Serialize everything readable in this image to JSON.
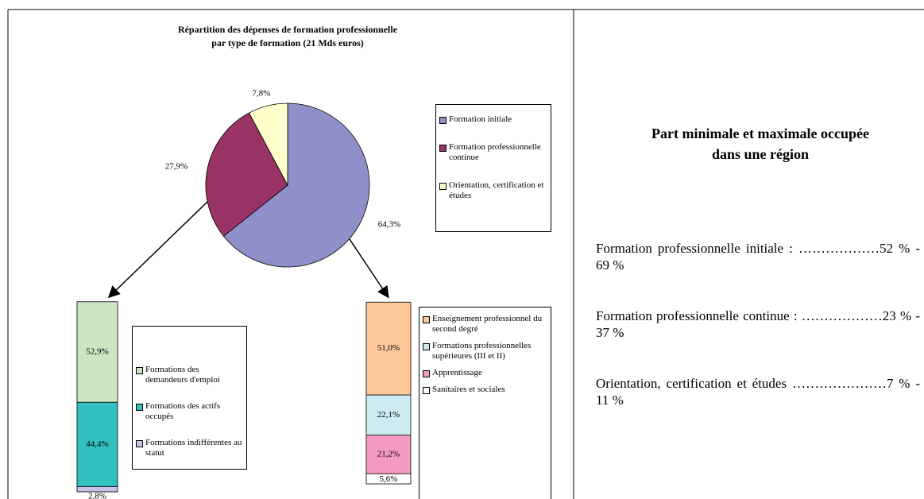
{
  "chart_data": [
    {
      "type": "pie",
      "title": [
        "Répartition des dépenses de formation professionnelle",
        "par type de formation (21 Mds euros)"
      ],
      "categories": [
        "Formation initiale",
        "Formation professionnelle continue",
        "Orientation, certification et études"
      ],
      "values": [
        64.3,
        27.9,
        7.8
      ],
      "value_labels": [
        "64,3%",
        "27,9%",
        "7,8%"
      ],
      "colors": [
        "#8f8fc9",
        "#993366",
        "#ffffcc"
      ]
    },
    {
      "type": "stacked_bar",
      "series": [
        {
          "name": "Formations des demandeurs d'emploi",
          "color": "#cce6c4",
          "values": [
            52.9
          ],
          "value_labels": [
            "52,9%"
          ]
        },
        {
          "name": "Formations des actifs occupés",
          "color": "#33c0c0",
          "values": [
            44.4
          ],
          "value_labels": [
            "44,4%"
          ]
        },
        {
          "name": "Formations indifférentes au statut",
          "color": "#ccc0e6",
          "values": [
            2.8
          ],
          "value_labels": [
            "2,8%"
          ]
        }
      ]
    },
    {
      "type": "stacked_bar",
      "series": [
        {
          "name": "Enseignement professionnel du second degré",
          "color": "#fcc89a",
          "values": [
            51.0
          ],
          "value_labels": [
            "51,0%"
          ]
        },
        {
          "name": "Formations professionnelles supérieures (III et II)",
          "color": "#ccecf2",
          "values": [
            22.1
          ],
          "value_labels": [
            "22,1%"
          ]
        },
        {
          "name": "Apprentissage",
          "color": "#f49ac2",
          "values": [
            21.2
          ],
          "value_labels": [
            "21,2%"
          ]
        },
        {
          "name": "Sanitaires et sociales",
          "color": "#ffffff",
          "values": [
            5.6
          ],
          "value_labels": [
            "5,6%"
          ]
        }
      ]
    }
  ],
  "side": {
    "title": [
      "Part minimale et maximale occupée",
      "dans une région"
    ],
    "items": [
      "Formation professionnelle initiale : ………………52 % - 69 %",
      "Formation professionnelle continue : ………………23 % - 37 %",
      "Orientation, certification et études …………………7 % - 11 %"
    ]
  }
}
